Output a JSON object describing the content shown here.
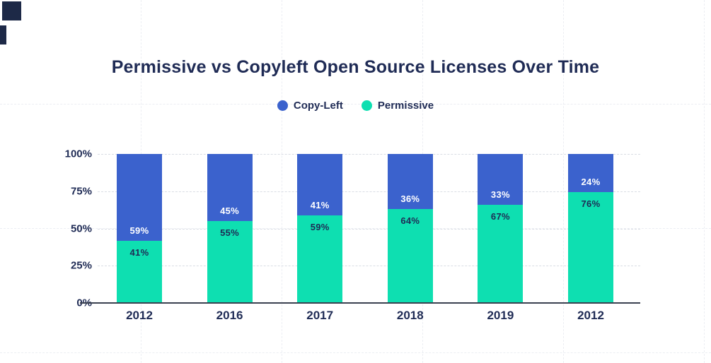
{
  "title": "Permissive vs Copyleft Open Source Licenses Over Time",
  "legend": {
    "items": [
      {
        "label": "Copy-Left",
        "color": "#3b62cd"
      },
      {
        "label": "Permissive",
        "color": "#0edfb1"
      }
    ]
  },
  "chart_data": {
    "type": "bar",
    "stacked": true,
    "title": "Permissive vs Copyleft Open Source Licenses Over Time",
    "categories": [
      "2012",
      "2016",
      "2017",
      "2018",
      "2019",
      "2012"
    ],
    "series": [
      {
        "name": "Copy-Left",
        "color": "#3b62cd",
        "label_color": "#ffffff",
        "values": [
          59,
          45,
          41,
          36,
          33,
          24
        ]
      },
      {
        "name": "Permissive",
        "color": "#0edfb1",
        "label_color": "#1f2b55",
        "values": [
          41,
          55,
          59,
          64,
          67,
          76
        ]
      }
    ],
    "value_suffix": "%",
    "ylim": [
      0,
      100
    ],
    "y_ticks": [
      {
        "label": "100%",
        "value": 100
      },
      {
        "label": "75%",
        "value": 75
      },
      {
        "label": "50%",
        "value": 50
      },
      {
        "label": "25%",
        "value": 25
      },
      {
        "label": "0%",
        "value": 0
      }
    ],
    "grid": "dashed",
    "legend_position": "top-center"
  },
  "colors": {
    "text_navy": "#1f2b55",
    "axis_line": "#3a4150",
    "chart_gridline": "#d9dde4",
    "page_gridline": "#eceef3",
    "corner_mark": "#1d2947",
    "background": "#ffffff"
  }
}
